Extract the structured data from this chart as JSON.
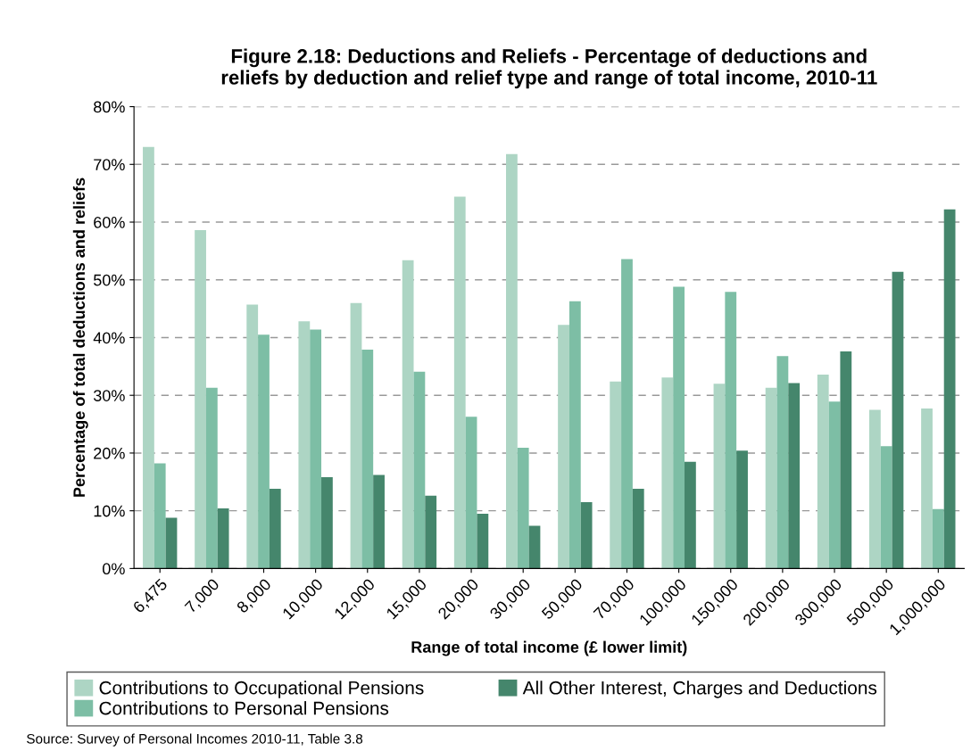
{
  "chart_data": {
    "type": "bar",
    "title": "Figure 2.18: Deductions and Reliefs - Percentage of deductions and\nreliefs by deduction and relief type and range of total income, 2010-11",
    "xlabel": "Range of total income (£ lower limit)",
    "ylabel": "Percentage of total deductions and reliefs",
    "categories": [
      "6,475",
      "7,000",
      "8,000",
      "10,000",
      "12,000",
      "15,000",
      "20,000",
      "30,000",
      "50,000",
      "70,000",
      "100,000",
      "150,000",
      "200,000",
      "300,000",
      "500,000",
      "1,000,000"
    ],
    "series": [
      {
        "name": "Contributions to Occupational Pensions",
        "color": "#add5c4",
        "values": [
          73.0,
          58.6,
          45.7,
          42.8,
          46.0,
          53.4,
          64.4,
          71.8,
          42.2,
          32.4,
          33.1,
          32.0,
          31.3,
          33.6,
          27.5,
          27.7
        ]
      },
      {
        "name": "Contributions to Personal Pensions",
        "color": "#7dbea5",
        "values": [
          18.2,
          31.3,
          40.5,
          41.4,
          37.9,
          34.1,
          26.3,
          20.9,
          46.3,
          53.6,
          48.8,
          47.9,
          36.8,
          28.9,
          21.2,
          10.3
        ]
      },
      {
        "name": "All Other Interest, Charges and Deductions",
        "color": "#45866c",
        "values": [
          8.8,
          10.4,
          13.8,
          15.8,
          16.2,
          12.6,
          9.5,
          7.4,
          11.5,
          13.8,
          18.5,
          20.4,
          32.1,
          37.6,
          51.4,
          62.2
        ]
      }
    ],
    "ylim": [
      0,
      80
    ],
    "yticks": [
      {
        "value": 0,
        "label": "0%"
      },
      {
        "value": 10,
        "label": "10%"
      },
      {
        "value": 20,
        "label": "20%"
      },
      {
        "value": 30,
        "label": "30%"
      },
      {
        "value": 40,
        "label": "40%"
      },
      {
        "value": 50,
        "label": "50%"
      },
      {
        "value": 60,
        "label": "60%"
      },
      {
        "value": 70,
        "label": "70%"
      },
      {
        "value": 80,
        "label": "80%"
      }
    ],
    "grid": "y",
    "legend": "bottom",
    "annotations": [
      "Source: Survey of Personal Incomes 2010-11, Table 3.8"
    ]
  }
}
